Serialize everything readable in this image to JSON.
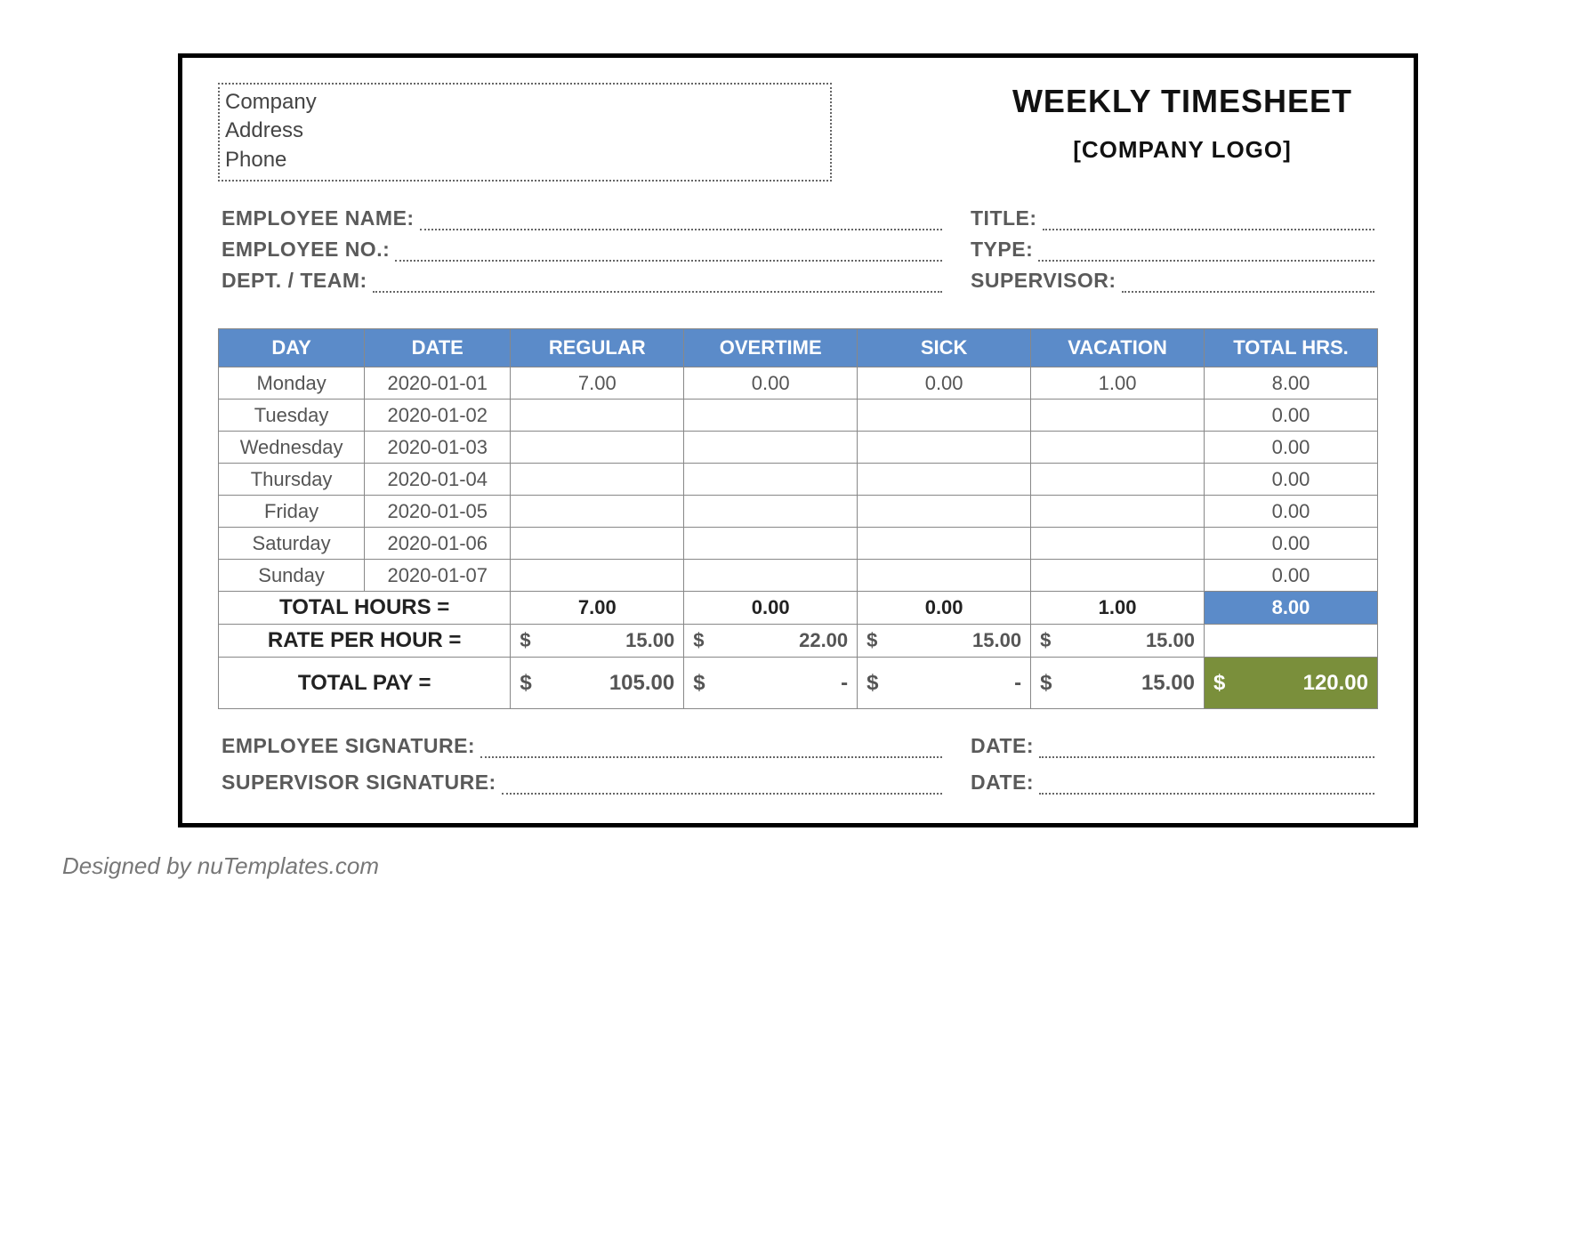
{
  "title": "WEEKLY TIMESHEET",
  "logo_placeholder": "[COMPANY LOGO]",
  "company_box": {
    "name": "Company",
    "address": "Address",
    "phone": "Phone"
  },
  "info": {
    "employee_name_label": "EMPLOYEE NAME:",
    "employee_no_label": "EMPLOYEE NO.:",
    "dept_team_label": "DEPT. / TEAM:",
    "title_label": "TITLE:",
    "type_label": "TYPE:",
    "supervisor_label": "SUPERVISOR:"
  },
  "columns": [
    "DAY",
    "DATE",
    "REGULAR",
    "OVERTIME",
    "SICK",
    "VACATION",
    "TOTAL HRS."
  ],
  "rows": [
    {
      "day": "Monday",
      "date": "2020-01-01",
      "regular": "7.00",
      "overtime": "0.00",
      "sick": "0.00",
      "vacation": "1.00",
      "total": "8.00"
    },
    {
      "day": "Tuesday",
      "date": "2020-01-02",
      "regular": "",
      "overtime": "",
      "sick": "",
      "vacation": "",
      "total": "0.00"
    },
    {
      "day": "Wednesday",
      "date": "2020-01-03",
      "regular": "",
      "overtime": "",
      "sick": "",
      "vacation": "",
      "total": "0.00"
    },
    {
      "day": "Thursday",
      "date": "2020-01-04",
      "regular": "",
      "overtime": "",
      "sick": "",
      "vacation": "",
      "total": "0.00"
    },
    {
      "day": "Friday",
      "date": "2020-01-05",
      "regular": "",
      "overtime": "",
      "sick": "",
      "vacation": "",
      "total": "0.00"
    },
    {
      "day": "Saturday",
      "date": "2020-01-06",
      "regular": "",
      "overtime": "",
      "sick": "",
      "vacation": "",
      "total": "0.00"
    },
    {
      "day": "Sunday",
      "date": "2020-01-07",
      "regular": "",
      "overtime": "",
      "sick": "",
      "vacation": "",
      "total": "0.00"
    }
  ],
  "totals": {
    "label_hours": "TOTAL HOURS =",
    "label_rate": "RATE PER HOUR =",
    "label_pay": "TOTAL PAY =",
    "hours": {
      "regular": "7.00",
      "overtime": "0.00",
      "sick": "0.00",
      "vacation": "1.00",
      "total": "8.00"
    },
    "rate": {
      "regular": "15.00",
      "overtime": "22.00",
      "sick": "15.00",
      "vacation": "15.00",
      "total": ""
    },
    "pay": {
      "regular": "105.00",
      "overtime": "-",
      "sick": "-",
      "vacation": "15.00",
      "total": "120.00"
    },
    "currency": "$"
  },
  "signatures": {
    "employee_label": "EMPLOYEE SIGNATURE:",
    "supervisor_label": "SUPERVISOR SIGNATURE:",
    "date_label": "DATE:"
  },
  "credit": "Designed by nuTemplates.com",
  "colors": {
    "header_blue": "#5b8bc9",
    "accent_green": "#7a8f3b",
    "border_gray": "#888888",
    "text_gray": "#555555",
    "label_gray": "#5a5a5a"
  }
}
